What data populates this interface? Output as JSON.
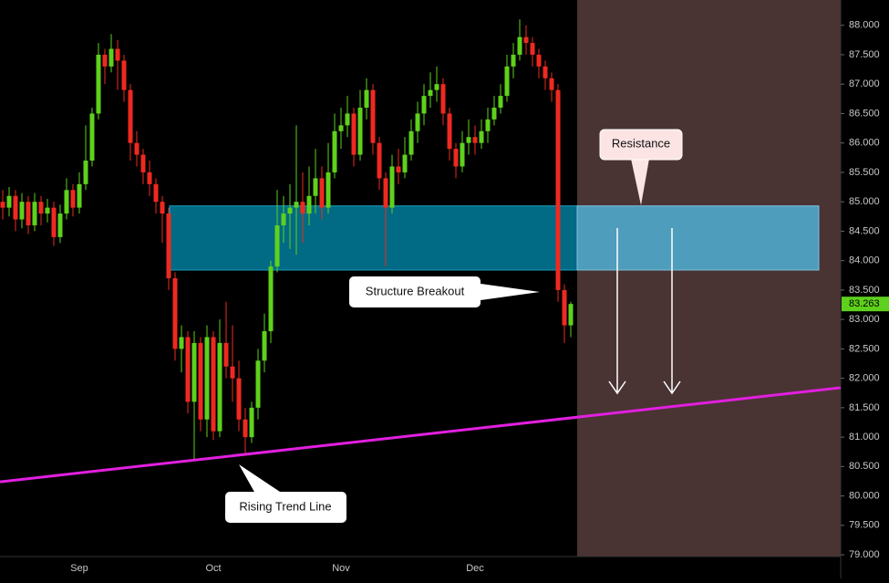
{
  "chart_data": {
    "type": "candlestick",
    "categories": [
      null,
      null,
      null,
      null,
      null,
      null,
      null,
      null,
      null,
      null,
      null,
      null,
      "Sep",
      null,
      null,
      null,
      null,
      null,
      null,
      null,
      null,
      null,
      null,
      null,
      null,
      null,
      null,
      null,
      null,
      null,
      null,
      null,
      null,
      "Oct",
      null,
      null,
      null,
      null,
      null,
      null,
      null,
      null,
      null,
      null,
      null,
      null,
      null,
      null,
      null,
      null,
      null,
      null,
      null,
      "Nov",
      null,
      null,
      null,
      null,
      null,
      null,
      null,
      null,
      null,
      null,
      null,
      null,
      null,
      null,
      null,
      null,
      null,
      null,
      null,
      null,
      "Dec",
      null,
      null,
      null,
      null,
      null,
      null,
      null,
      null,
      null,
      null,
      null,
      null,
      null,
      null,
      null
    ],
    "open": [
      85.0,
      84.9,
      85.1,
      84.7,
      85.0,
      84.6,
      85.0,
      84.8,
      84.9,
      84.4,
      84.8,
      85.2,
      84.9,
      85.3,
      85.7,
      86.5,
      87.5,
      87.3,
      87.6,
      87.4,
      86.9,
      86.0,
      85.8,
      85.5,
      85.3,
      85.0,
      84.8,
      83.7,
      82.5,
      82.7,
      81.6,
      82.6,
      81.3,
      82.7,
      81.1,
      82.6,
      82.2,
      82.0,
      81.3,
      81.0,
      81.5,
      82.3,
      82.8,
      83.9,
      84.6,
      84.8,
      84.9,
      85.0,
      84.8,
      85.1,
      85.4,
      84.9,
      85.5,
      86.2,
      86.3,
      86.5,
      85.8,
      86.6,
      86.9,
      86.0,
      85.4,
      84.9,
      85.6,
      85.5,
      85.8,
      86.2,
      86.5,
      86.8,
      86.9,
      87.0,
      86.5,
      85.9,
      85.6,
      86.0,
      86.1,
      86.0,
      86.2,
      86.4,
      86.6,
      86.8,
      87.3,
      87.5,
      87.8,
      87.7,
      87.5,
      87.3,
      87.1,
      86.9,
      83.5,
      82.9
    ],
    "high": [
      85.2,
      85.25,
      85.2,
      85.15,
      85.1,
      85.15,
      85.1,
      85.05,
      85.0,
      84.95,
      85.4,
      85.3,
      85.5,
      86.3,
      86.6,
      87.7,
      87.6,
      87.85,
      87.75,
      87.5,
      87.0,
      86.2,
      85.9,
      85.7,
      85.4,
      85.1,
      84.9,
      83.8,
      82.9,
      82.8,
      82.8,
      82.7,
      82.9,
      82.8,
      83.0,
      83.3,
      82.9,
      82.3,
      81.5,
      81.6,
      82.5,
      83.1,
      84.0,
      85.2,
      85.1,
      85.3,
      86.3,
      85.5,
      85.6,
      85.9,
      85.6,
      86.0,
      86.5,
      86.6,
      86.8,
      86.6,
      86.9,
      87.1,
      87.0,
      86.1,
      85.5,
      85.8,
      85.9,
      86.1,
      86.4,
      86.7,
      87.0,
      87.2,
      87.3,
      87.1,
      86.6,
      86.0,
      86.2,
      86.4,
      86.3,
      86.4,
      86.6,
      86.8,
      87.0,
      87.5,
      87.7,
      88.1,
      88.0,
      87.8,
      87.6,
      87.4,
      87.2,
      87.0,
      83.6,
      83.3
    ],
    "low": [
      84.7,
      84.75,
      84.5,
      84.55,
      84.45,
      84.5,
      84.6,
      84.65,
      84.25,
      84.3,
      84.7,
      84.75,
      84.8,
      85.2,
      85.6,
      86.4,
      87.0,
      87.2,
      86.9,
      86.7,
      85.7,
      85.6,
      85.3,
      85.1,
      84.8,
      84.3,
      83.5,
      82.3,
      82.1,
      81.4,
      80.6,
      81.1,
      81.0,
      80.95,
      81.0,
      82.0,
      81.6,
      81.1,
      80.7,
      80.9,
      81.3,
      82.1,
      82.6,
      83.8,
      84.3,
      84.2,
      84.1,
      84.3,
      84.6,
      84.8,
      84.7,
      84.8,
      85.4,
      85.9,
      86.1,
      85.6,
      85.7,
      86.4,
      85.8,
      85.2,
      83.9,
      84.8,
      85.3,
      85.4,
      85.7,
      86.0,
      86.3,
      86.6,
      86.7,
      86.3,
      85.7,
      85.4,
      85.5,
      85.8,
      85.8,
      85.9,
      86.0,
      86.3,
      86.5,
      86.7,
      87.1,
      87.4,
      87.5,
      87.3,
      87.1,
      86.9,
      86.7,
      83.3,
      82.6,
      82.7
    ],
    "close": [
      84.9,
      85.1,
      84.7,
      85.0,
      84.6,
      85.0,
      84.8,
      84.9,
      84.4,
      84.8,
      85.2,
      84.9,
      85.3,
      85.7,
      86.5,
      87.5,
      87.3,
      87.6,
      87.4,
      86.9,
      86.0,
      85.8,
      85.5,
      85.3,
      85.0,
      84.8,
      83.7,
      82.5,
      82.7,
      81.6,
      82.6,
      81.3,
      82.7,
      81.1,
      82.6,
      82.2,
      82.0,
      81.3,
      81.0,
      81.5,
      82.3,
      82.8,
      83.9,
      84.6,
      84.8,
      84.9,
      85.0,
      84.8,
      85.1,
      85.4,
      84.9,
      85.5,
      86.2,
      86.3,
      86.5,
      85.8,
      86.6,
      86.9,
      86.0,
      85.4,
      84.9,
      85.6,
      85.5,
      85.8,
      86.2,
      86.5,
      86.8,
      86.9,
      87.0,
      86.5,
      85.9,
      85.6,
      86.0,
      86.1,
      86.0,
      86.2,
      86.4,
      86.6,
      86.8,
      87.3,
      87.5,
      87.8,
      87.7,
      87.5,
      87.3,
      87.1,
      86.9,
      83.5,
      82.9,
      83.263
    ],
    "up_color": "#5ed11c",
    "down_color": "#ee2a20",
    "ylim": [
      78.97,
      88.43
    ],
    "yticks": [
      {
        "value": 79,
        "label": "79.000"
      },
      {
        "value": 79.5,
        "label": "79.500"
      },
      {
        "value": 80,
        "label": "80.000"
      },
      {
        "value": 80.5,
        "label": "80.500"
      },
      {
        "value": 81,
        "label": "81.000"
      },
      {
        "value": 81.5,
        "label": "81.500"
      },
      {
        "value": 82,
        "label": "82.000"
      },
      {
        "value": 82.5,
        "label": "82.500"
      },
      {
        "value": 83,
        "label": "83.000"
      },
      {
        "value": 83.5,
        "label": "83.500"
      },
      {
        "value": 84,
        "label": "84.000"
      },
      {
        "value": 84.5,
        "label": "84.500"
      },
      {
        "value": 85,
        "label": "85.000"
      },
      {
        "value": 85.5,
        "label": "85.500"
      },
      {
        "value": 86,
        "label": "86.000"
      },
      {
        "value": 86.5,
        "label": "86.500"
      },
      {
        "value": 87,
        "label": "87.000"
      },
      {
        "value": 87.5,
        "label": "87.500"
      },
      {
        "value": 88,
        "label": "88.000"
      }
    ],
    "grid": false,
    "resistance_zone": {
      "low": 83.84,
      "high": 84.93
    },
    "trend_line": {
      "start": 80.24,
      "end": 81.84,
      "color": "#e21fe0"
    },
    "annotations": {
      "resistance": "Resistance",
      "breakout": "Structure Breakout",
      "trend": "Rising Trend Line"
    }
  }
}
